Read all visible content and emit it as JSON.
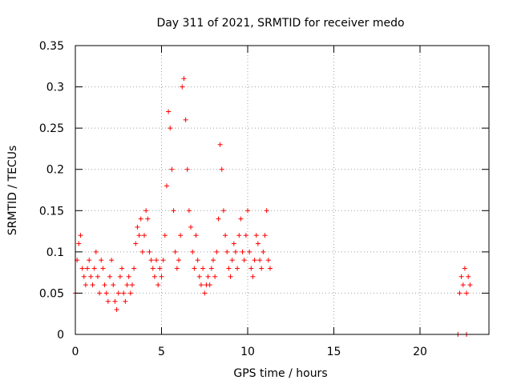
{
  "chart_data": {
    "type": "scatter",
    "title": "Day 311 of 2021, SRMTID for receiver medo",
    "xlabel": "GPS time / hours",
    "ylabel": "SRMTID / TECUs",
    "xlim": [
      0,
      24
    ],
    "ylim": [
      0,
      0.35
    ],
    "x_ticks": [
      "0",
      "5",
      "10",
      "15",
      "20"
    ],
    "y_ticks": [
      "0",
      "0.05",
      "0.1",
      "0.15",
      "0.2",
      "0.25",
      "0.3",
      "0.35"
    ],
    "grid": true,
    "legend": "none",
    "marker": "+",
    "series_color": "#ff0000",
    "series": [
      {
        "x": [
          0.0,
          0.1,
          0.2,
          0.3,
          0.4,
          0.5,
          0.6,
          0.7,
          0.8,
          0.9,
          1.0,
          1.1,
          1.2,
          1.3,
          1.4,
          1.5,
          1.6,
          1.7,
          1.8,
          1.9,
          2.0,
          2.1,
          2.2,
          2.3,
          2.4,
          2.5,
          2.6,
          2.7,
          2.8,
          2.9,
          3.0,
          3.1,
          3.2,
          3.3,
          3.4,
          3.5,
          3.6,
          3.7,
          3.8,
          3.9,
          4.0,
          4.1,
          4.2,
          4.3,
          4.4,
          4.5,
          4.6,
          4.7,
          4.8,
          4.9,
          5.0,
          5.1,
          5.2,
          5.3,
          5.4,
          5.5,
          5.6,
          5.7,
          5.8,
          5.9,
          6.0,
          6.1,
          6.2,
          6.3,
          6.4,
          6.5,
          6.6,
          6.7,
          6.8,
          6.9,
          7.0,
          7.1,
          7.2,
          7.3,
          7.4,
          7.5,
          7.6,
          7.7,
          7.8,
          7.9,
          8.0,
          8.1,
          8.2,
          8.3,
          8.4,
          8.5,
          8.6,
          8.7,
          8.8,
          8.9,
          9.0,
          9.1,
          9.2,
          9.3,
          9.4,
          9.5,
          9.6,
          9.7,
          9.8,
          9.9,
          10.0,
          10.1,
          10.2,
          10.3,
          10.4,
          10.5,
          10.6,
          10.7,
          10.8,
          10.9,
          11.0,
          11.1,
          11.2,
          11.3,
          22.3,
          22.4,
          22.5,
          22.6,
          22.7,
          22.8,
          22.9
        ],
        "y": [
          0.05,
          0.09,
          0.11,
          0.12,
          0.08,
          0.07,
          0.06,
          0.08,
          0.09,
          0.07,
          0.06,
          0.08,
          0.1,
          0.07,
          0.05,
          0.09,
          0.08,
          0.06,
          0.05,
          0.04,
          0.07,
          0.09,
          0.06,
          0.04,
          0.03,
          0.05,
          0.07,
          0.08,
          0.05,
          0.04,
          0.06,
          0.07,
          0.05,
          0.06,
          0.08,
          0.11,
          0.13,
          0.12,
          0.14,
          0.1,
          0.12,
          0.15,
          0.14,
          0.1,
          0.09,
          0.08,
          0.07,
          0.09,
          0.06,
          0.08,
          0.07,
          0.09,
          0.12,
          0.18,
          0.27,
          0.25,
          0.2,
          0.15,
          0.1,
          0.08,
          0.09,
          0.12,
          0.3,
          0.31,
          0.26,
          0.2,
          0.15,
          0.13,
          0.1,
          0.08,
          0.12,
          0.09,
          0.07,
          0.06,
          0.08,
          0.05,
          0.06,
          0.07,
          0.06,
          0.08,
          0.09,
          0.07,
          0.1,
          0.14,
          0.23,
          0.2,
          0.15,
          0.12,
          0.1,
          0.08,
          0.07,
          0.09,
          0.11,
          0.1,
          0.08,
          0.12,
          0.14,
          0.1,
          0.09,
          0.12,
          0.15,
          0.1,
          0.08,
          0.07,
          0.09,
          0.12,
          0.11,
          0.09,
          0.08,
          0.1,
          0.12,
          0.15,
          0.09,
          0.08,
          0.05,
          0.07,
          0.06,
          0.08,
          0.05,
          0.07,
          0.06
        ]
      },
      {
        "x": [
          22.2,
          22.7
        ],
        "y": [
          0.0,
          0.0
        ]
      }
    ]
  }
}
